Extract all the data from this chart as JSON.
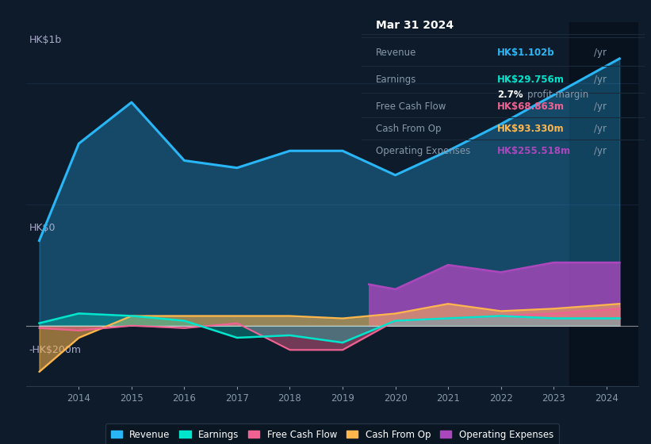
{
  "bg_color": "#0d1b2a",
  "plot_bg_color": "#0d1b2a",
  "grid_color": "#1e3050",
  "years": [
    2013.25,
    2014,
    2015,
    2016,
    2017,
    2018,
    2019,
    2020,
    2021,
    2022,
    2023,
    2024.25
  ],
  "revenue": [
    0.35,
    0.75,
    0.92,
    0.68,
    0.65,
    0.72,
    0.72,
    0.62,
    0.72,
    0.83,
    0.95,
    1.1
  ],
  "earnings": [
    0.01,
    0.05,
    0.04,
    0.02,
    -0.05,
    -0.04,
    -0.07,
    0.02,
    0.03,
    0.04,
    0.03,
    0.03
  ],
  "free_cash_flow": [
    -0.01,
    -0.02,
    0.0,
    -0.01,
    0.01,
    -0.1,
    -0.1,
    0.02,
    0.03,
    0.04,
    0.05,
    0.07
  ],
  "cash_from_op": [
    -0.19,
    -0.05,
    0.04,
    0.04,
    0.04,
    0.04,
    0.03,
    0.05,
    0.09,
    0.06,
    0.07,
    0.09
  ],
  "operating_expenses_years": [
    2019.5,
    2020,
    2021,
    2022,
    2023,
    2024.25
  ],
  "operating_expenses": [
    0.17,
    0.15,
    0.25,
    0.22,
    0.26,
    0.26
  ],
  "revenue_color": "#29b6f6",
  "earnings_color": "#00e5cc",
  "free_cash_flow_color": "#f06292",
  "cash_from_op_color": "#ffb74d",
  "operating_expenses_color": "#ab47bc",
  "ylabel_top": "HK$1b",
  "ylabel_bottom": "-HK$200m",
  "ylabel_zero": "HK$0",
  "ylim_min": -0.25,
  "ylim_max": 1.25,
  "info_box_date": "Mar 31 2024",
  "info_revenue_label": "Revenue",
  "info_revenue_value": "HK$1.102b",
  "info_earnings_label": "Earnings",
  "info_earnings_value": "HK$29.756m",
  "info_margin": "2.7%",
  "info_fcf_label": "Free Cash Flow",
  "info_fcf_value": "HK$68.863m",
  "info_cfop_label": "Cash From Op",
  "info_cfop_value": "HK$93.330m",
  "info_opex_label": "Operating Expenses",
  "info_opex_value": "HK$255.518m",
  "legend_labels": [
    "Revenue",
    "Earnings",
    "Free Cash Flow",
    "Cash From Op",
    "Operating Expenses"
  ],
  "legend_colors": [
    "#29b6f6",
    "#00e5cc",
    "#f06292",
    "#ffb74d",
    "#ab47bc"
  ]
}
